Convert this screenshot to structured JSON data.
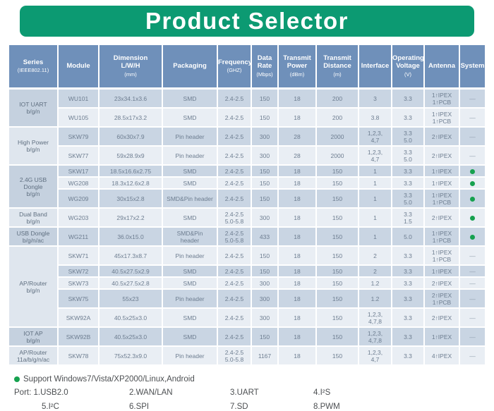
{
  "title": "Product Selector",
  "colors": {
    "banner_green": "#0c9a72",
    "header_blue": "#6f90ba",
    "row_dark": "#c9d5e3",
    "row_light": "#e9eef4",
    "supported_dot_green": "#16a14f"
  },
  "table": {
    "columns": [
      {
        "label": "Series",
        "unit": "(IEEE802.11)"
      },
      {
        "label": "Module",
        "unit": ""
      },
      {
        "label": "Dimension\nL/W/H",
        "unit": "(mm)"
      },
      {
        "label": "Packaging",
        "unit": ""
      },
      {
        "label": "Frequency",
        "unit": "(GHZ)"
      },
      {
        "label": "Data\nRate",
        "unit": "(Mbps)"
      },
      {
        "label": "Transmit\nPower",
        "unit": "(dBm)"
      },
      {
        "label": "Transmit\nDistance",
        "unit": "(m)"
      },
      {
        "label": "Interface",
        "unit": ""
      },
      {
        "label": "Operating\nVoltage",
        "unit": "(V)"
      },
      {
        "label": "Antenna",
        "unit": ""
      },
      {
        "label": "System",
        "unit": ""
      }
    ],
    "fields": [
      "module",
      "dimension",
      "packaging",
      "frequency",
      "data_rate",
      "tx_power",
      "tx_distance",
      "interface",
      "voltage",
      "antenna"
    ],
    "rows": [
      {
        "series": {
          "label": "IOT UART\nb/g/n",
          "rowspan": 2,
          "shade": "dark"
        },
        "module": "WU101",
        "dimension": "23x34.1x3.6",
        "packaging": "SMD",
        "frequency": "2.4-2.5",
        "data_rate": "150",
        "tx_power": "18",
        "tx_distance": "200",
        "interface": "3",
        "voltage": "3.3",
        "antenna": "1个IPEX\n1个PCB",
        "system": "—"
      },
      {
        "module": "WU105",
        "dimension": "28.5x17x3.2",
        "packaging": "SMD",
        "frequency": "2.4-2.5",
        "data_rate": "150",
        "tx_power": "18",
        "tx_distance": "200",
        "interface": "3.8",
        "voltage": "3.3",
        "antenna": "1个IPEX\n1个PCB",
        "system": "—"
      },
      {
        "series": {
          "label": "High Power\nb/g/n",
          "rowspan": 2,
          "shade": "light"
        },
        "module": "SKW79",
        "dimension": "60x30x7.9",
        "packaging": "Pin header",
        "frequency": "2.4-2.5",
        "data_rate": "300",
        "tx_power": "28",
        "tx_distance": "2000",
        "interface": "1,2,3,\n4,7",
        "voltage": "3.3\n5.0",
        "antenna": "2个IPEX",
        "system": "—"
      },
      {
        "module": "SKW77",
        "dimension": "59x28.9x9",
        "packaging": "Pin header",
        "frequency": "2.4-2.5",
        "data_rate": "300",
        "tx_power": "28",
        "tx_distance": "2000",
        "interface": "1,2,3,\n4,7",
        "voltage": "3.3\n5.0",
        "antenna": "2个IPEX",
        "system": "—"
      },
      {
        "series": {
          "label": "2.4G USB\nDongle\nb/g/n",
          "rowspan": 3,
          "shade": "dark"
        },
        "module": "SKW17",
        "dimension": "18.5x16.6x2.75",
        "packaging": "SMD",
        "frequency": "2.4-2.5",
        "data_rate": "150",
        "tx_power": "18",
        "tx_distance": "150",
        "interface": "1",
        "voltage": "3.3",
        "antenna": "1个IPEX",
        "system": "dot"
      },
      {
        "module": "WG208",
        "dimension": "18.3x12.6x2.8",
        "packaging": "SMD",
        "frequency": "2.4-2.5",
        "data_rate": "150",
        "tx_power": "18",
        "tx_distance": "150",
        "interface": "1",
        "voltage": "3.3",
        "antenna": "1个IPEX",
        "system": "dot"
      },
      {
        "module": "WG209",
        "dimension": "30x15x2.8",
        "packaging": "SMD&Pin header",
        "frequency": "2.4-2.5",
        "data_rate": "150",
        "tx_power": "18",
        "tx_distance": "150",
        "interface": "1",
        "voltage": "3.3\n5.0",
        "antenna": "1个IPEX\n1个PCB",
        "system": "dot"
      },
      {
        "series": {
          "label": "Dual Band\nb/g/n",
          "rowspan": 1,
          "shade": "light"
        },
        "module": "WG203",
        "dimension": "29x17x2.2",
        "packaging": "SMD",
        "frequency": "2.4-2.5\n5.0-5.8",
        "data_rate": "300",
        "tx_power": "18",
        "tx_distance": "150",
        "interface": "1",
        "voltage": "3.3\n1.5",
        "antenna": "2个IPEX",
        "system": "dot"
      },
      {
        "series": {
          "label": "USB Dongle\nb/g/n/ac",
          "rowspan": 1,
          "shade": "dark"
        },
        "module": "WG211",
        "dimension": "36.0x15.0",
        "packaging": "SMD&Pin\nheader",
        "frequency": "2.4-2.5\n5.0-5.8",
        "data_rate": "433",
        "tx_power": "18",
        "tx_distance": "150",
        "interface": "1",
        "voltage": "5.0",
        "antenna": "1个IPEX\n1个PCB",
        "system": "dot"
      },
      {
        "series": {
          "label": "AP/Router\nb/g/n",
          "rowspan": 5,
          "shade": "light"
        },
        "module": "SKW71",
        "dimension": "45x17.3x8.7",
        "packaging": "Pin header",
        "frequency": "2.4-2.5",
        "data_rate": "150",
        "tx_power": "18",
        "tx_distance": "150",
        "interface": "2",
        "voltage": "3.3",
        "antenna": "1个IPEX\n1个PCB",
        "system": "—"
      },
      {
        "module": "SKW72",
        "dimension": "40.5x27.5x2.9",
        "packaging": "SMD",
        "frequency": "2.4-2.5",
        "data_rate": "150",
        "tx_power": "18",
        "tx_distance": "150",
        "interface": "2",
        "voltage": "3.3",
        "antenna": "1个IPEX",
        "system": "—"
      },
      {
        "module": "SKW73",
        "dimension": "40.5x27.5x2.8",
        "packaging": "SMD",
        "frequency": "2.4-2.5",
        "data_rate": "300",
        "tx_power": "18",
        "tx_distance": "150",
        "interface": "1.2",
        "voltage": "3.3",
        "antenna": "2个IPEX",
        "system": "—"
      },
      {
        "module": "SKW75",
        "dimension": "55x23",
        "packaging": "Pin header",
        "frequency": "2.4-2.5",
        "data_rate": "300",
        "tx_power": "18",
        "tx_distance": "150",
        "interface": "1.2",
        "voltage": "3.3",
        "antenna": "2个IPEX\n1个PCB",
        "system": "—"
      },
      {
        "module": "SKW92A",
        "dimension": "40.5x25x3.0",
        "packaging": "SMD",
        "frequency": "2.4-2.5",
        "data_rate": "300",
        "tx_power": "18",
        "tx_distance": "150",
        "interface": "1,2,3,\n4,7,8",
        "voltage": "3.3",
        "antenna": "2个IPEX",
        "system": "—"
      },
      {
        "series": {
          "label": "IOT AP\nb/g/n",
          "rowspan": 1,
          "shade": "dark"
        },
        "module": "SKW92B",
        "dimension": "40.5x25x3.0",
        "packaging": "SMD",
        "frequency": "2.4-2.5",
        "data_rate": "150",
        "tx_power": "18",
        "tx_distance": "150",
        "interface": "1,2,3,\n4,7,8",
        "voltage": "3.3",
        "antenna": "1个IPEX",
        "system": "—"
      },
      {
        "series": {
          "label": "AP/Router\n11a/b/g/n/ac",
          "rowspan": 1,
          "shade": "light"
        },
        "module": "SKW78",
        "dimension": "75x52.3x9.0",
        "packaging": "Pin header",
        "frequency": "2.4-2.5\n5.0-5.8",
        "data_rate": "1167",
        "tx_power": "18",
        "tx_distance": "150",
        "interface": "1,2,3,\n4,7",
        "voltage": "3.3",
        "antenna": "4个IPEX",
        "system": "—"
      }
    ]
  },
  "footer": {
    "support": "Support  Windows7/Vista/XP2000/Linux,Android",
    "port_rows": [
      [
        "Port: 1.USB2.0",
        "2.WAN/LAN",
        "3.UART",
        "4.I²S"
      ],
      [
        "5.I²C",
        "6.SPI",
        "7.SD",
        "8.PWM"
      ]
    ]
  }
}
